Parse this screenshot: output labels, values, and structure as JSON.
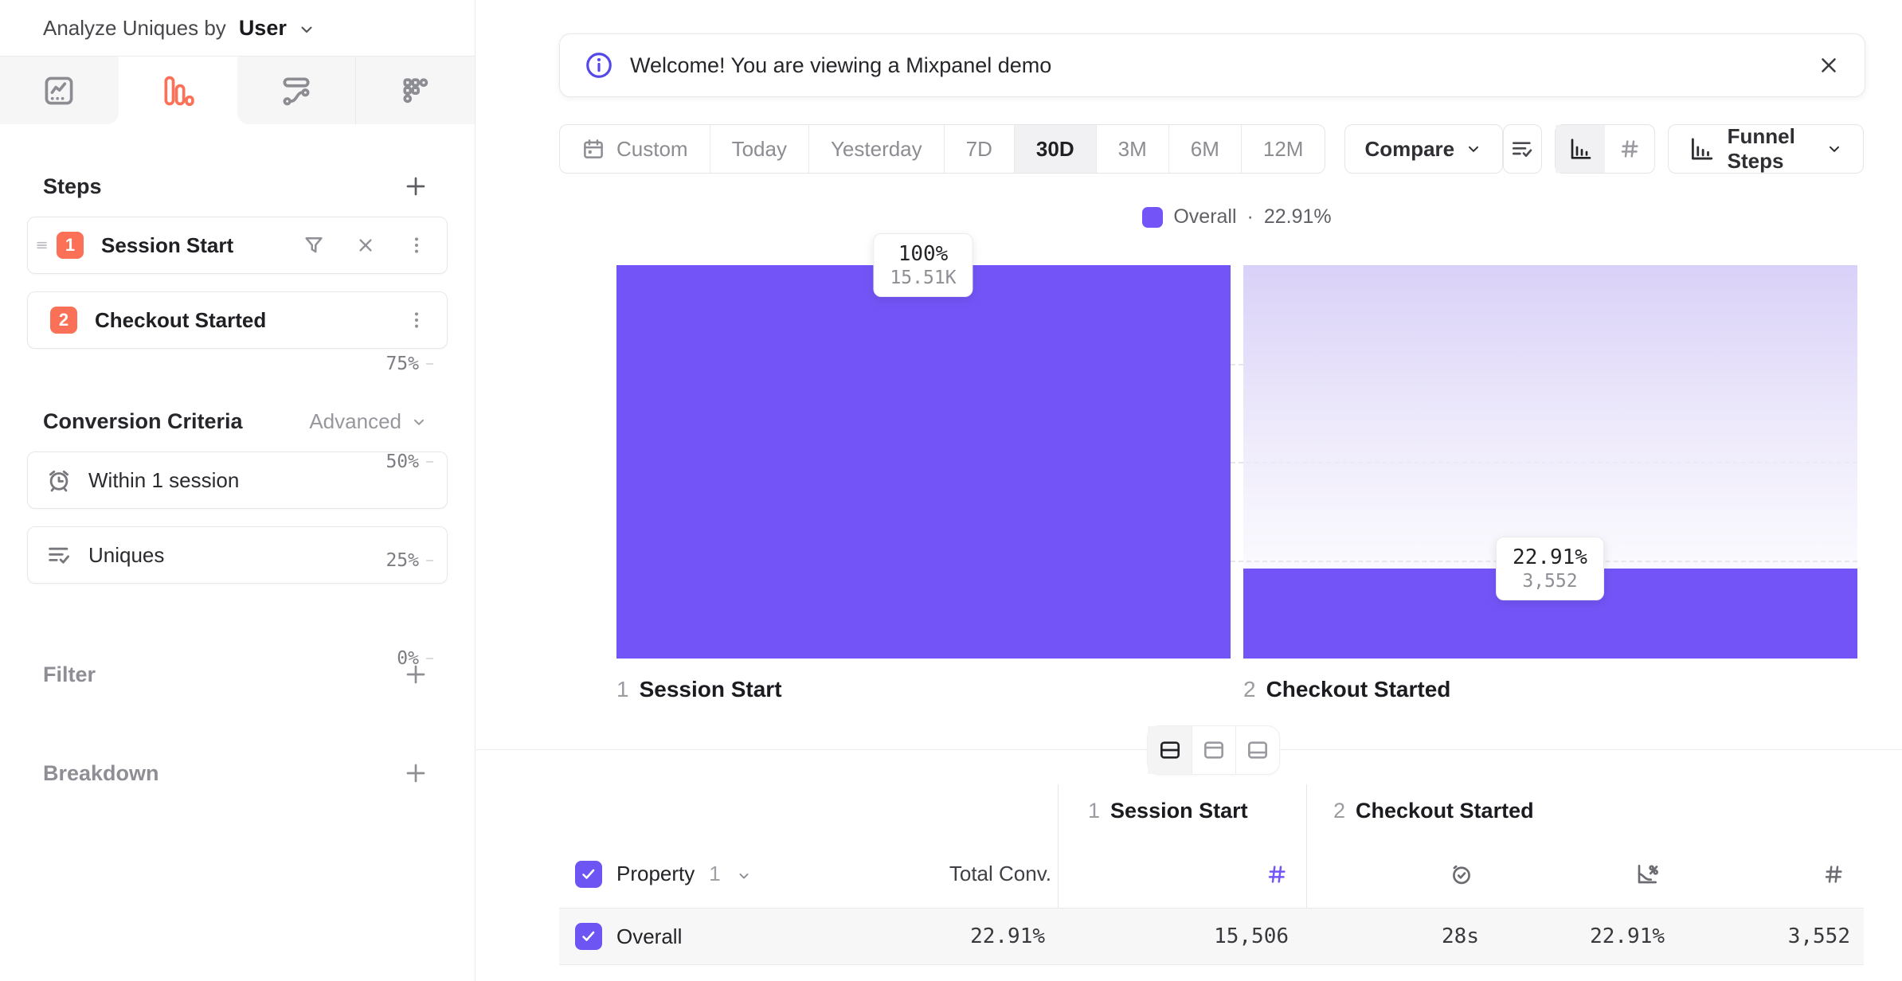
{
  "colors": {
    "purple": "#7355F7",
    "purple_fade_top": "#D9D1F8",
    "orange": "#FB7157",
    "info": "#5548E8",
    "checkbox": "#6C55F2",
    "row_bg": "#F7F7F8",
    "active_segment_bg": "#F1F1F3"
  },
  "sidebar": {
    "analyze": {
      "prefix": "Analyze Uniques by",
      "value": "User"
    },
    "steps": {
      "title": "Steps",
      "items": [
        {
          "num": "1",
          "label": "Session Start"
        },
        {
          "num": "2",
          "label": "Checkout Started"
        }
      ]
    },
    "conversion": {
      "title": "Conversion Criteria",
      "advanced": "Advanced",
      "criteria": [
        {
          "label": "Within 1 session"
        },
        {
          "label": "Uniques"
        }
      ]
    },
    "filter": {
      "title": "Filter"
    },
    "breakdown": {
      "title": "Breakdown"
    }
  },
  "banner": {
    "message": "Welcome! You are viewing a Mixpanel demo"
  },
  "toolbar": {
    "ranges": [
      "Custom",
      "Today",
      "Yesterday",
      "7D",
      "30D",
      "3M",
      "6M",
      "12M"
    ],
    "active_range": "30D",
    "compare": "Compare",
    "view_selector": "Funnel Steps"
  },
  "chart_data": {
    "type": "bar",
    "kind": "funnel-steps",
    "categories": [
      {
        "num": "1",
        "label": "Session Start"
      },
      {
        "num": "2",
        "label": "Checkout Started"
      }
    ],
    "series": [
      {
        "name": "Overall",
        "pct": [
          100,
          22.91
        ],
        "counts": [
          15506,
          3552
        ]
      }
    ],
    "bar_labels": [
      {
        "pct": "100%",
        "count": "15.51K"
      },
      {
        "pct": "22.91%",
        "count": "3,552"
      }
    ],
    "yticks": [
      "75%",
      "50%",
      "25%",
      "0%"
    ],
    "ylim": [
      0,
      100
    ],
    "grid": "dashed-horizontal",
    "legend": {
      "name": "Overall",
      "separator": "·",
      "value": "22.91%",
      "position": "top-center"
    }
  },
  "table": {
    "groups": [
      {
        "num": "1",
        "label": "Session Start"
      },
      {
        "num": "2",
        "label": "Checkout Started"
      }
    ],
    "header": {
      "property": "Property",
      "property_index": "1",
      "total_conv": "Total Conv."
    },
    "rows": [
      {
        "label": "Overall",
        "total_conv": "22.91%",
        "step1_count": "15,506",
        "avg_time": "28s",
        "conv_rate": "22.91%",
        "converted": "3,552"
      }
    ]
  }
}
